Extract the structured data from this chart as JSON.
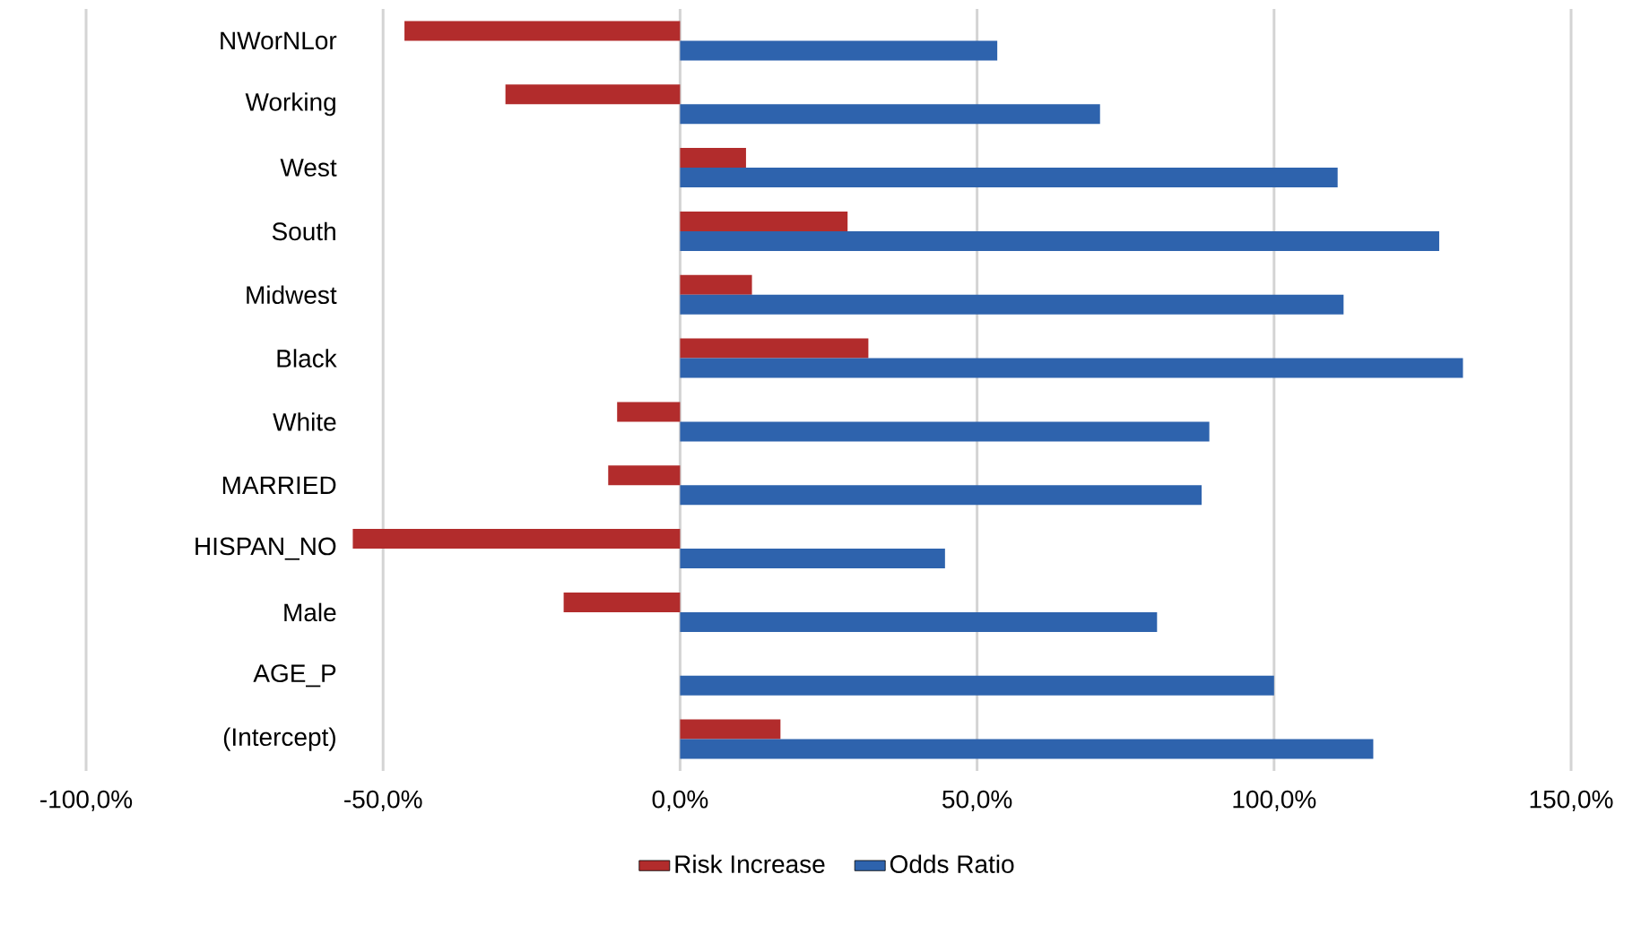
{
  "chart_data": {
    "type": "bar",
    "orientation": "horizontal",
    "categories": [
      "NWorNLor",
      "Working",
      "West",
      "South",
      "Midwest",
      "Black",
      "White",
      "MARRIED",
      "HISPAN_NO",
      "Male",
      "AGE_P",
      "(Intercept)"
    ],
    "series": [
      {
        "name": "Risk Increase",
        "color": "#b22c2c",
        "values": [
          -46.4,
          -29.4,
          11.1,
          28.2,
          12.1,
          31.7,
          -10.6,
          -12.1,
          -55.1,
          -19.6,
          0,
          16.9
        ]
      },
      {
        "name": "Odds Ratio",
        "color": "#2e63ad",
        "values": [
          53.4,
          70.7,
          110.7,
          127.8,
          111.7,
          131.8,
          89.1,
          87.8,
          44.6,
          80.3,
          100,
          116.7
        ]
      }
    ],
    "xlim": [
      -100,
      150
    ],
    "xticks": [
      {
        "value": -100,
        "label": "-100,0%"
      },
      {
        "value": -50,
        "label": "-50,0%"
      },
      {
        "value": 0,
        "label": "0,0%"
      },
      {
        "value": 50,
        "label": "50,0%"
      },
      {
        "value": 100,
        "label": "100,0%"
      },
      {
        "value": 150,
        "label": "150,0%"
      }
    ],
    "grid": "x",
    "legend": "bottom"
  }
}
